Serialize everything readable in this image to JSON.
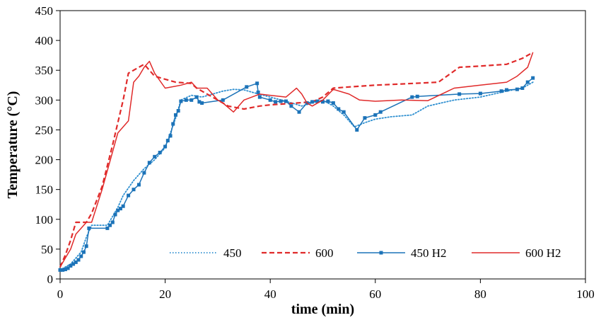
{
  "chart_data": {
    "type": "line",
    "title": "",
    "xlabel": "time (min)",
    "ylabel": "Temperature (°C)",
    "xlim": [
      0,
      100
    ],
    "ylim": [
      0,
      450
    ],
    "xticks": [
      0,
      20,
      40,
      60,
      80,
      100
    ],
    "yticks": [
      0,
      50,
      100,
      150,
      200,
      250,
      300,
      350,
      400,
      450
    ],
    "grid": false,
    "legend_position": "bottom-center",
    "series": [
      {
        "name": "450",
        "color": "#2e8fd0",
        "style": "dotted",
        "marker": "none",
        "x": [
          0,
          2,
          4,
          5,
          6,
          9,
          10,
          11,
          12,
          14,
          16,
          18,
          20,
          21,
          22,
          23,
          25,
          27,
          29,
          31,
          33,
          35,
          37,
          40,
          43,
          46,
          48,
          50,
          52,
          54,
          56,
          58,
          60,
          63,
          67,
          70,
          75,
          80,
          85,
          88,
          90
        ],
        "y": [
          15,
          25,
          45,
          70,
          90,
          90,
          105,
          120,
          140,
          165,
          185,
          200,
          220,
          245,
          270,
          300,
          308,
          305,
          310,
          315,
          318,
          317,
          312,
          305,
          298,
          290,
          295,
          300,
          290,
          275,
          255,
          262,
          268,
          272,
          275,
          290,
          300,
          305,
          315,
          320,
          330
        ]
      },
      {
        "name": "600",
        "color": "#e02a2a",
        "style": "dashed",
        "marker": "none",
        "x": [
          0,
          1,
          2,
          3,
          4,
          5,
          6,
          8,
          10,
          12,
          13,
          14,
          15,
          16,
          17,
          18,
          20,
          22,
          25,
          26,
          27,
          28,
          30,
          32,
          35,
          38,
          40,
          45,
          48,
          50,
          52,
          55,
          60,
          65,
          72,
          76,
          80,
          85,
          88,
          90
        ],
        "y": [
          20,
          40,
          65,
          95,
          95,
          95,
          110,
          155,
          225,
          300,
          345,
          350,
          355,
          360,
          350,
          340,
          335,
          330,
          328,
          320,
          315,
          310,
          300,
          290,
          285,
          290,
          292,
          295,
          297,
          305,
          320,
          322,
          325,
          327,
          330,
          355,
          357,
          360,
          370,
          380
        ]
      },
      {
        "name": "450 H2",
        "color": "#1c73b8",
        "style": "solid",
        "marker": "square",
        "x": [
          0,
          0.5,
          1,
          1.5,
          2,
          2.5,
          3,
          3.5,
          4,
          4.5,
          5,
          5.5,
          9,
          9.5,
          10,
          10.5,
          11,
          11.5,
          12,
          13,
          14,
          15,
          16,
          17,
          18,
          19,
          20,
          20.5,
          21,
          21.5,
          22,
          22.5,
          23,
          24,
          25,
          26,
          26.5,
          27,
          31,
          35.5,
          37.5,
          37.7,
          38,
          40,
          41,
          42,
          43,
          44,
          45.5,
          47,
          48,
          49,
          50,
          51,
          52,
          53,
          54,
          56.5,
          58,
          60,
          61,
          67,
          68,
          76,
          80,
          84,
          85,
          87,
          88,
          89,
          90
        ],
        "y": [
          15,
          15,
          16,
          18,
          22,
          25,
          28,
          32,
          38,
          45,
          55,
          85,
          85,
          90,
          95,
          108,
          115,
          118,
          122,
          140,
          150,
          158,
          178,
          195,
          205,
          212,
          222,
          232,
          240,
          260,
          275,
          282,
          298,
          300,
          300,
          305,
          297,
          295,
          300,
          322,
          328,
          313,
          305,
          300,
          297,
          298,
          298,
          290,
          280,
          295,
          297,
          298,
          297,
          298,
          295,
          285,
          280,
          250,
          270,
          275,
          280,
          305,
          306,
          310,
          311,
          315,
          317,
          318,
          320,
          330,
          337
        ]
      },
      {
        "name": "600 H2",
        "color": "#e02a2a",
        "style": "solid",
        "marker": "none",
        "x": [
          0,
          1,
          2,
          3,
          5,
          6,
          8,
          11,
          13,
          14,
          15,
          16,
          17,
          18,
          20,
          23,
          25,
          26,
          28,
          30,
          31,
          33,
          35,
          38,
          40,
          43,
          45,
          46,
          47,
          48,
          50,
          52,
          55,
          57,
          60,
          65,
          70,
          75,
          80,
          85,
          87,
          89,
          90
        ],
        "y": [
          20,
          35,
          50,
          75,
          95,
          95,
          150,
          245,
          265,
          330,
          340,
          355,
          365,
          345,
          320,
          325,
          330,
          320,
          320,
          300,
          295,
          280,
          300,
          310,
          308,
          305,
          320,
          310,
          295,
          290,
          300,
          318,
          310,
          300,
          298,
          300,
          299,
          320,
          325,
          330,
          340,
          355,
          380
        ]
      }
    ]
  }
}
